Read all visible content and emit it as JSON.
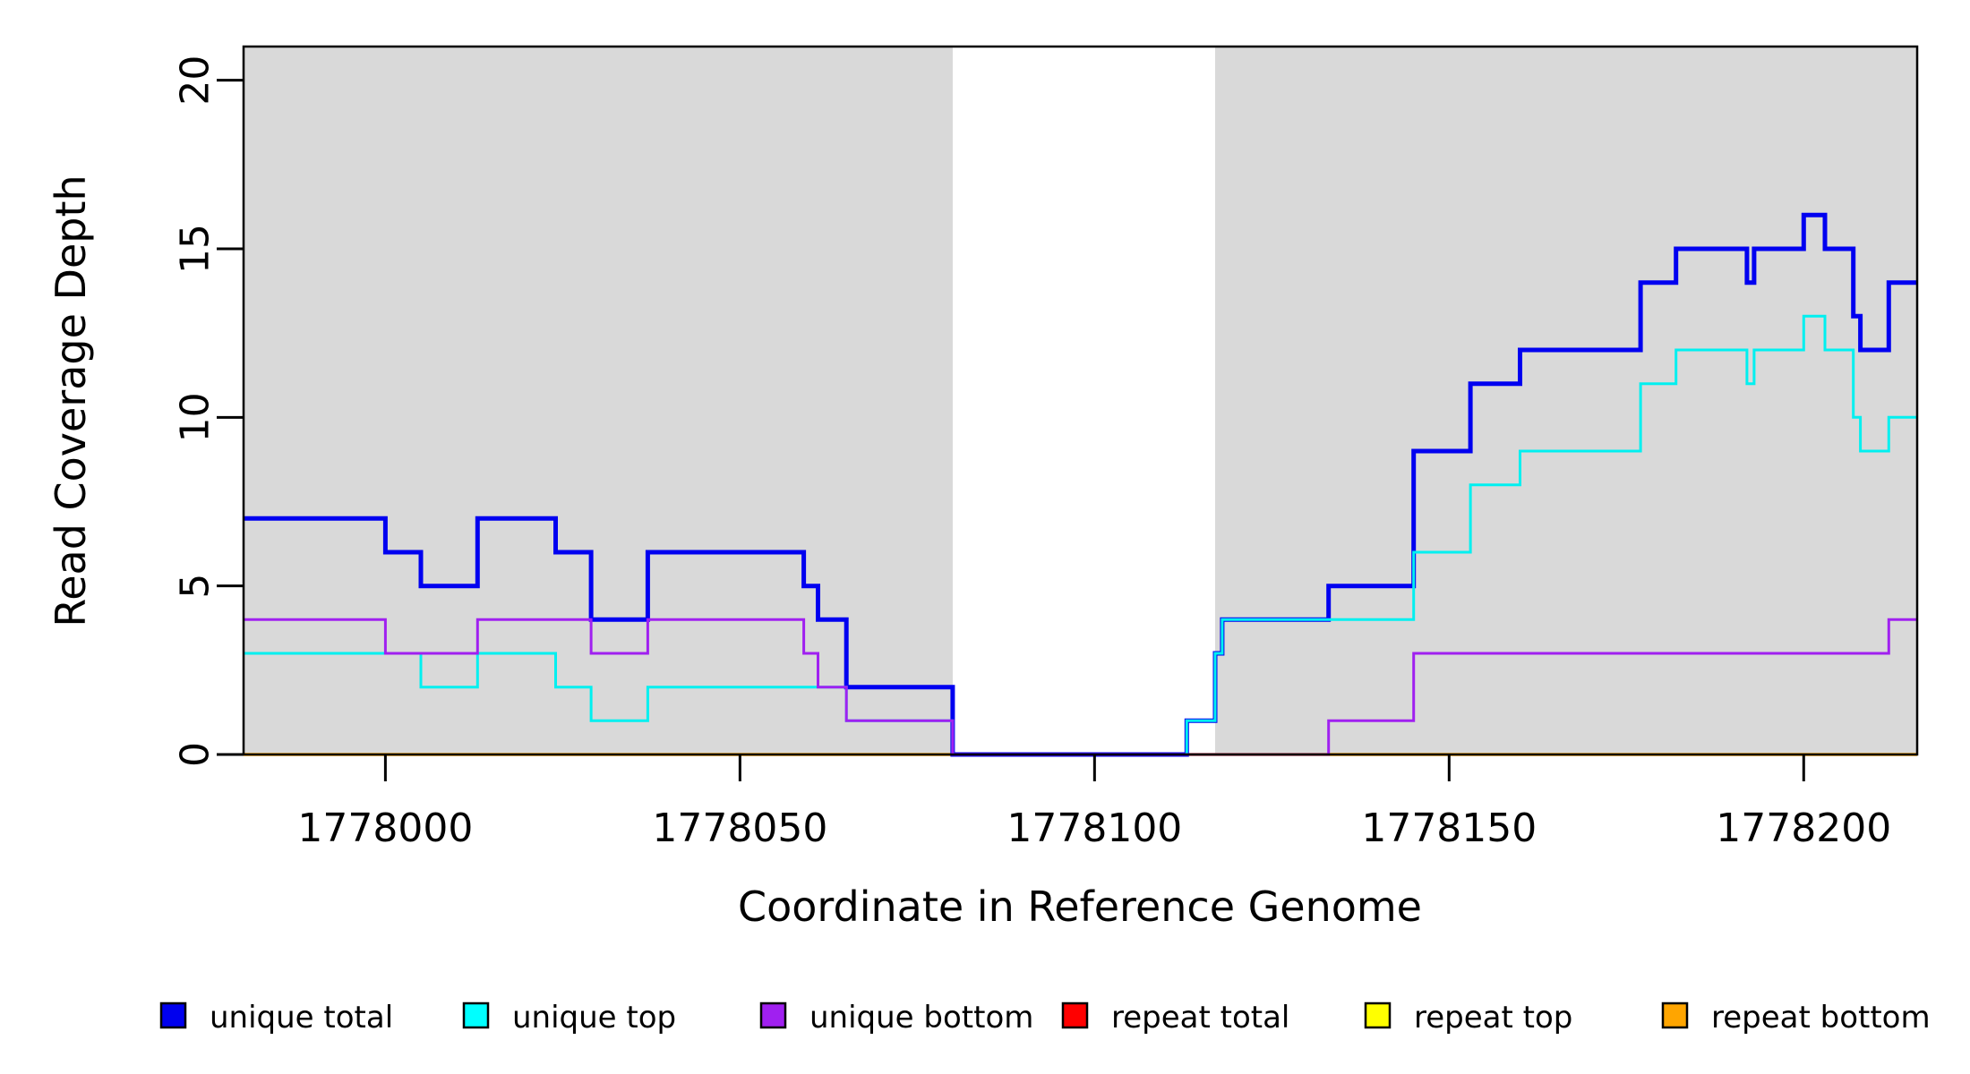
{
  "chart_data": {
    "type": "line",
    "subtype": "step-coverage-plot",
    "title": "",
    "xlabel": "Coordinate in Reference Genome",
    "ylabel": "Read Coverage Depth",
    "xlim": [
      1777980,
      1778216
    ],
    "ylim": [
      0,
      21
    ],
    "x_ticks": [
      1778000,
      1778050,
      1778100,
      1778150,
      1778200
    ],
    "y_ticks": [
      0,
      5,
      10,
      15,
      20
    ],
    "grid": "off",
    "background_color": "#ffffff",
    "shade_color": "#d9d9d9",
    "axis_color": "#000000",
    "shaded_regions": [
      {
        "x0": 1777980,
        "x1": 1778080
      },
      {
        "x0": 1778117,
        "x1": 1778216
      }
    ],
    "series": [
      {
        "name": "repeat total",
        "color": "#FF0000",
        "line_width": 3,
        "steps": [
          [
            1777980,
            0
          ]
        ]
      },
      {
        "name": "repeat top",
        "color": "#FFFF00",
        "line_width": 3,
        "steps": [
          [
            1777980,
            0
          ]
        ]
      },
      {
        "name": "repeat bottom",
        "color": "#FFA500",
        "line_width": 3.5,
        "steps": [
          [
            1777980,
            0
          ]
        ]
      },
      {
        "name": "unique total",
        "color": "#0000F0",
        "line_width": 5,
        "steps": [
          [
            1777980,
            7
          ],
          [
            1778000,
            6
          ],
          [
            1778005,
            5
          ],
          [
            1778013,
            7
          ],
          [
            1778024,
            6
          ],
          [
            1778029,
            4
          ],
          [
            1778037,
            6
          ],
          [
            1778059,
            5
          ],
          [
            1778061,
            4
          ],
          [
            1778065,
            2
          ],
          [
            1778080,
            0
          ],
          [
            1778113,
            1
          ],
          [
            1778117,
            3
          ],
          [
            1778118,
            4
          ],
          [
            1778133,
            5
          ],
          [
            1778145,
            9
          ],
          [
            1778153,
            11
          ],
          [
            1778160,
            12
          ],
          [
            1778177,
            14
          ],
          [
            1778182,
            15
          ],
          [
            1778192,
            14
          ],
          [
            1778193,
            15
          ],
          [
            1778200,
            16
          ],
          [
            1778203,
            15
          ],
          [
            1778207,
            13
          ],
          [
            1778208,
            12
          ],
          [
            1778212,
            14
          ]
        ]
      },
      {
        "name": "unique top",
        "color": "#00F0F0",
        "line_width": 3,
        "steps": [
          [
            1777980,
            3
          ],
          [
            1778005,
            2
          ],
          [
            1778013,
            3
          ],
          [
            1778024,
            2
          ],
          [
            1778029,
            1
          ],
          [
            1778037,
            2
          ],
          [
            1778065,
            1
          ],
          [
            1778080,
            0
          ],
          [
            1778113,
            1
          ],
          [
            1778117,
            3
          ],
          [
            1778118,
            4
          ],
          [
            1778145,
            6
          ],
          [
            1778153,
            8
          ],
          [
            1778160,
            9
          ],
          [
            1778177,
            11
          ],
          [
            1778182,
            12
          ],
          [
            1778192,
            11
          ],
          [
            1778193,
            12
          ],
          [
            1778200,
            13
          ],
          [
            1778203,
            12
          ],
          [
            1778207,
            10
          ],
          [
            1778208,
            9
          ],
          [
            1778212,
            10
          ]
        ]
      },
      {
        "name": "unique bottom",
        "color": "#A020F0",
        "line_width": 3,
        "steps": [
          [
            1777980,
            4
          ],
          [
            1778000,
            3
          ],
          [
            1778013,
            4
          ],
          [
            1778029,
            3
          ],
          [
            1778037,
            4
          ],
          [
            1778059,
            3
          ],
          [
            1778061,
            2
          ],
          [
            1778065,
            1
          ],
          [
            1778080,
            0
          ],
          [
            1778133,
            1
          ],
          [
            1778145,
            3
          ],
          [
            1778212,
            4
          ]
        ]
      }
    ],
    "legend_position": "bottom",
    "legend": [
      {
        "label": "unique total",
        "color": "#0000EE"
      },
      {
        "label": "unique top",
        "color": "#00FFFF"
      },
      {
        "label": "unique bottom",
        "color": "#A020F0"
      },
      {
        "label": "repeat total",
        "color": "#FF0000"
      },
      {
        "label": "repeat top",
        "color": "#FFFF00"
      },
      {
        "label": "repeat bottom",
        "color": "#FFA500"
      }
    ]
  }
}
